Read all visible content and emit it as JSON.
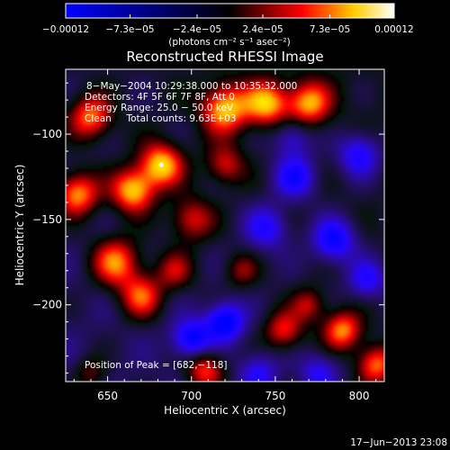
{
  "colorbar": {
    "tick_labels": [
      "−0.00012",
      "−7.3e−05",
      "−2.4e−05",
      "2.4e−05",
      "7.3e−05",
      "0.00012"
    ],
    "tick_values": [
      -0.00012,
      -7.3e-05,
      -2.4e-05,
      2.4e-05,
      7.3e-05,
      0.00012
    ],
    "range": [
      -0.00012,
      0.00012
    ],
    "unit_label": "(photons cm⁻² s⁻¹ asec⁻²)"
  },
  "chart_data": {
    "type": "heatmap",
    "title": "Reconstructed RHESSI Image",
    "xlabel": "Heliocentric X (arcsec)",
    "ylabel": "Heliocentric Y (arcsec)",
    "x_range": [
      625,
      815
    ],
    "y_range": [
      -245,
      -62
    ],
    "x_ticks": [
      650,
      700,
      750,
      800
    ],
    "x_tick_labels": [
      "650",
      "700",
      "750",
      "800"
    ],
    "y_ticks": [
      -100,
      -150,
      -200
    ],
    "y_tick_labels": [
      "−100",
      "−150",
      "−200"
    ],
    "annotations": [
      "8−May−2004 10:29:38.000 to 10:35:32.000",
      "Detectors: 4F 5F 6F 7F 8F, Att 0",
      "Energy Range: 25.0 − 50.0 keV",
      "Clean     Total counts: 9.63E+03"
    ],
    "peak_label": "Position of Peak = [682,−118]",
    "peak": [
      682,
      -118
    ],
    "colormap": [
      "#0000ff",
      "#000000",
      "#ff0000",
      "#ffff00",
      "#ffffff"
    ],
    "sources": [
      [
        682,
        -118,
        1.0,
        9
      ],
      [
        665,
        -133,
        1.0,
        9
      ],
      [
        720,
        -85,
        0.95,
        10
      ],
      [
        745,
        -82,
        0.9,
        9
      ],
      [
        770,
        -82,
        0.85,
        9
      ],
      [
        640,
        -90,
        0.8,
        9
      ],
      [
        632,
        -135,
        0.9,
        9
      ],
      [
        655,
        -175,
        0.85,
        10
      ],
      [
        670,
        -195,
        0.75,
        9
      ],
      [
        700,
        -150,
        0.6,
        9
      ],
      [
        720,
        -118,
        0.55,
        8
      ],
      [
        690,
        -180,
        0.5,
        8
      ],
      [
        708,
        -238,
        0.75,
        8
      ],
      [
        755,
        -215,
        0.65,
        8
      ],
      [
        770,
        -200,
        0.5,
        7
      ],
      [
        790,
        -215,
        0.85,
        8
      ],
      [
        810,
        -235,
        0.8,
        8
      ],
      [
        730,
        -180,
        0.4,
        7
      ],
      [
        640,
        -240,
        0.4,
        7
      ],
      [
        785,
        -162,
        -0.8,
        9
      ],
      [
        762,
        -125,
        -0.7,
        9
      ],
      [
        745,
        -155,
        -0.6,
        9
      ],
      [
        720,
        -210,
        -0.9,
        8
      ],
      [
        700,
        -220,
        -0.8,
        8
      ],
      [
        800,
        -112,
        -0.7,
        9
      ],
      [
        805,
        -185,
        -0.6,
        8
      ],
      [
        776,
        -240,
        -0.5,
        8
      ],
      [
        740,
        -240,
        -0.5,
        8
      ],
      [
        760,
        -102,
        -0.5,
        8
      ]
    ]
  },
  "footer": {
    "timestamp": "17−Jun−2013 23:08"
  }
}
